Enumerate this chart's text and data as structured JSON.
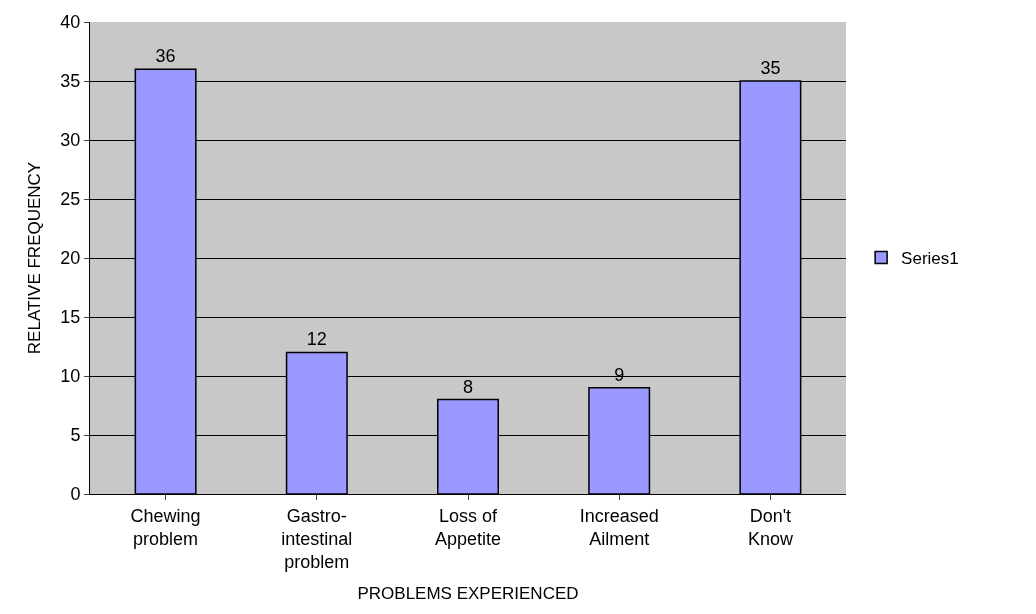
{
  "chart_data": {
    "type": "bar",
    "xlabel": "PROBLEMS EXPERIENCED",
    "ylabel": "RELATIVE FREQUENCY",
    "categories": [
      "Chewing\nproblem",
      "Gastro-\nintestinal\nproblem",
      "Loss of\nAppetite",
      "Increased\nAilment",
      "Don't\nKnow"
    ],
    "series": [
      {
        "name": "Series1",
        "color": "#9999ff",
        "values": [
          36,
          12,
          8,
          9,
          35
        ]
      }
    ],
    "ylim": [
      0,
      40
    ],
    "yticks": [
      0,
      5,
      10,
      15,
      20,
      25,
      30,
      35,
      40
    ],
    "grid": "y",
    "legend": "right",
    "data_labels": true
  }
}
